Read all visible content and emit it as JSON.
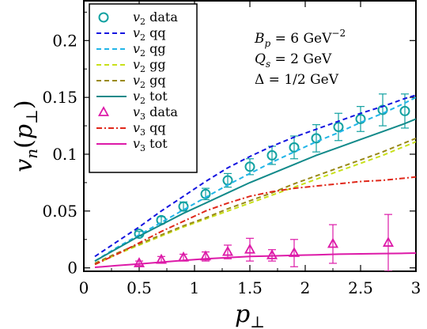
{
  "chart_data": {
    "type": "line",
    "xlabel": "p⊥",
    "ylabel": "vn(p⊥)",
    "xlim": [
      0,
      3
    ],
    "ylim": [
      -0.003,
      0.235
    ],
    "xticks": [
      "0",
      "0.5",
      "1",
      "1.5",
      "2",
      "2.5",
      "3"
    ],
    "yticks": [
      "0",
      "0.05",
      "0.1",
      "0.15",
      "0.2"
    ],
    "grid": false,
    "legend_position": "top-left",
    "annotations": [
      "Bp = 6 GeV−2",
      "Qs = 2 GeV",
      "Δ = 1/2 GeV"
    ],
    "series": [
      {
        "name": "v2 data",
        "kind": "points",
        "marker": "circle",
        "color": "#12a1a1",
        "x": [
          0.5,
          0.7,
          0.9,
          1.1,
          1.3,
          1.5,
          1.7,
          1.9,
          2.1,
          2.3,
          2.5,
          2.7,
          2.9
        ],
        "y": [
          0.03,
          0.042,
          0.054,
          0.065,
          0.077,
          0.089,
          0.099,
          0.106,
          0.114,
          0.124,
          0.131,
          0.139,
          0.138
        ],
        "err": [
          0.002,
          0.003,
          0.004,
          0.005,
          0.006,
          0.007,
          0.008,
          0.01,
          0.012,
          0.012,
          0.011,
          0.014,
          0.015
        ]
      },
      {
        "name": "v2 qq",
        "kind": "line",
        "dash": "6,4",
        "color": "#1515e0",
        "x": [
          0.1,
          0.3,
          0.5,
          0.7,
          0.9,
          1.1,
          1.3,
          1.5,
          1.7,
          1.9,
          2.1,
          2.3,
          2.5,
          2.7,
          2.9,
          3.0
        ],
        "y": [
          0.01,
          0.023,
          0.036,
          0.05,
          0.063,
          0.076,
          0.088,
          0.098,
          0.107,
          0.115,
          0.122,
          0.129,
          0.136,
          0.142,
          0.149,
          0.152
        ]
      },
      {
        "name": "v2 qg",
        "kind": "line",
        "dash": "6,4",
        "color": "#22b5e8",
        "x": [
          0.1,
          0.3,
          0.5,
          0.7,
          0.9,
          1.1,
          1.3,
          1.5,
          1.7,
          1.9,
          2.1,
          2.3,
          2.5,
          2.7,
          2.9,
          3.0
        ],
        "y": [
          0.006,
          0.018,
          0.029,
          0.04,
          0.051,
          0.062,
          0.073,
          0.083,
          0.093,
          0.102,
          0.111,
          0.119,
          0.128,
          0.136,
          0.145,
          0.15
        ]
      },
      {
        "name": "v2 gg",
        "kind": "line",
        "dash": "6,4",
        "color": "#c8e01a",
        "x": [
          0.1,
          0.3,
          0.5,
          0.7,
          0.9,
          1.1,
          1.3,
          1.5,
          1.7,
          1.9,
          2.1,
          2.3,
          2.5,
          2.7,
          2.9,
          3.0
        ],
        "y": [
          0.003,
          0.012,
          0.02,
          0.028,
          0.036,
          0.043,
          0.05,
          0.057,
          0.064,
          0.071,
          0.078,
          0.085,
          0.092,
          0.099,
          0.107,
          0.111
        ]
      },
      {
        "name": "v2 gq",
        "kind": "line",
        "dash": "6,4",
        "color": "#9a8a1a",
        "x": [
          0.1,
          0.3,
          0.5,
          0.7,
          0.9,
          1.1,
          1.3,
          1.5,
          1.7,
          1.9,
          2.1,
          2.3,
          2.5,
          2.7,
          2.9,
          3.0
        ],
        "y": [
          0.004,
          0.013,
          0.021,
          0.029,
          0.037,
          0.044,
          0.052,
          0.059,
          0.066,
          0.074,
          0.081,
          0.088,
          0.095,
          0.102,
          0.11,
          0.114
        ]
      },
      {
        "name": "v2 tot",
        "kind": "line",
        "dash": "",
        "color": "#128a8a",
        "x": [
          0.1,
          0.3,
          0.5,
          0.7,
          0.9,
          1.1,
          1.3,
          1.5,
          1.7,
          1.9,
          2.1,
          2.3,
          2.5,
          2.7,
          2.9,
          3.0
        ],
        "y": [
          0.006,
          0.017,
          0.028,
          0.038,
          0.048,
          0.057,
          0.066,
          0.075,
          0.083,
          0.091,
          0.099,
          0.106,
          0.113,
          0.12,
          0.127,
          0.131
        ]
      },
      {
        "name": "v3 data",
        "kind": "points",
        "marker": "triangle",
        "color": "#dd1aa8",
        "x": [
          0.5,
          0.7,
          0.9,
          1.1,
          1.3,
          1.5,
          1.7,
          1.9,
          2.25,
          2.75
        ],
        "y": [
          0.004,
          0.007,
          0.009,
          0.01,
          0.014,
          0.016,
          0.011,
          0.013,
          0.021,
          0.022
        ],
        "err": [
          0.002,
          0.003,
          0.003,
          0.004,
          0.006,
          0.01,
          0.005,
          0.012,
          0.017,
          0.025
        ]
      },
      {
        "name": "v3 qq",
        "kind": "line",
        "dash": "7,3,2,3",
        "color": "#e0281a",
        "x": [
          0.1,
          0.3,
          0.5,
          0.7,
          0.9,
          1.1,
          1.3,
          1.5,
          1.7,
          1.9,
          2.1,
          2.3,
          2.5,
          2.7,
          2.9,
          3.0
        ],
        "y": [
          0.003,
          0.012,
          0.022,
          0.032,
          0.041,
          0.05,
          0.057,
          0.063,
          0.067,
          0.07,
          0.072,
          0.074,
          0.076,
          0.077,
          0.079,
          0.08
        ]
      },
      {
        "name": "v3 tot",
        "kind": "line",
        "dash": "",
        "color": "#dd1aa8",
        "x": [
          0.1,
          0.3,
          0.5,
          0.7,
          0.9,
          1.1,
          1.3,
          1.5,
          1.7,
          1.9,
          2.1,
          2.3,
          2.5,
          2.7,
          2.9,
          3.0
        ],
        "y": [
          0.0005,
          0.002,
          0.0035,
          0.005,
          0.0065,
          0.008,
          0.009,
          0.01,
          0.0105,
          0.011,
          0.0115,
          0.012,
          0.0123,
          0.0126,
          0.0128,
          0.013
        ]
      }
    ]
  }
}
